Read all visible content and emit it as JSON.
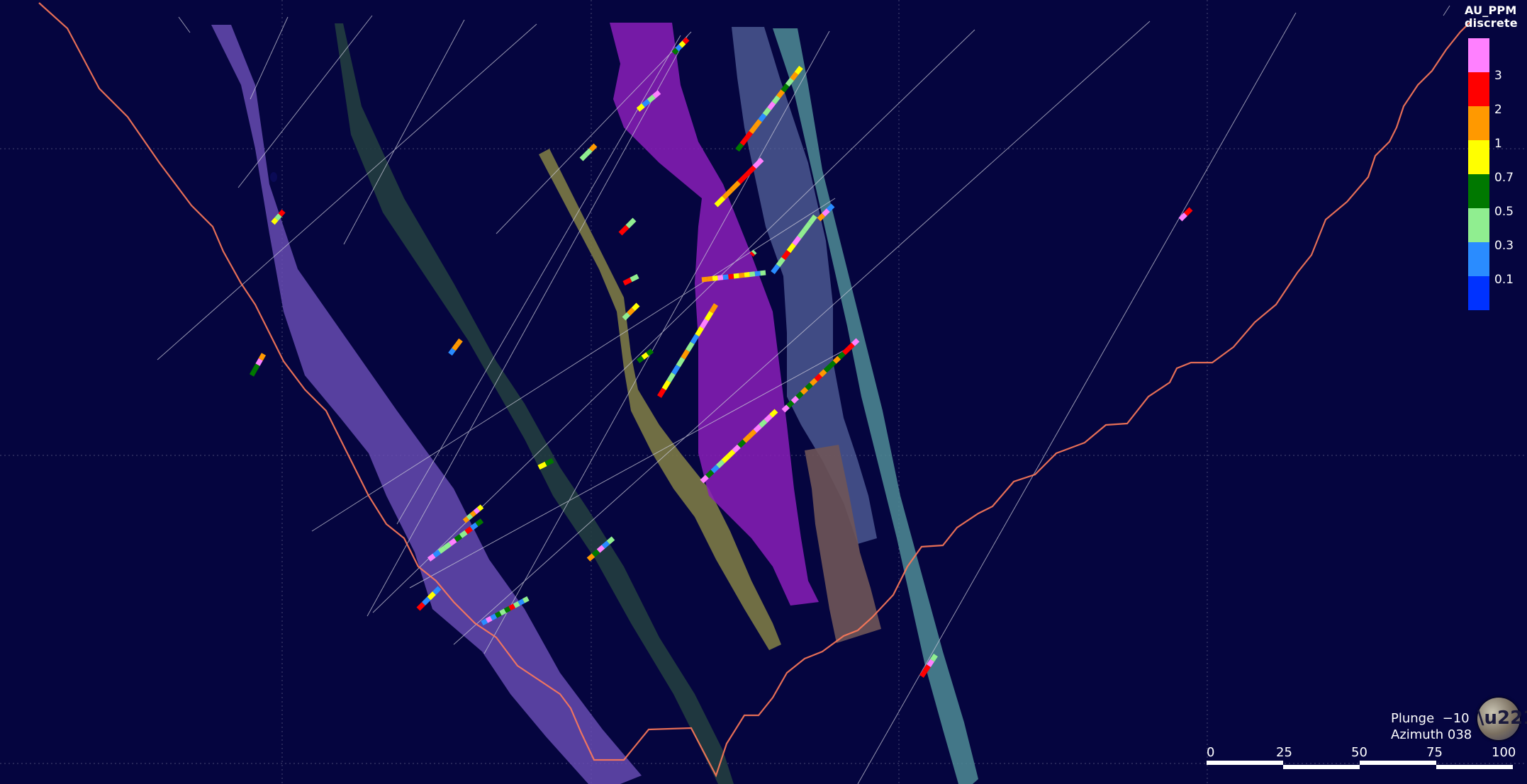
{
  "legend": {
    "title_line1": "AU_PPM",
    "title_line2": "discrete",
    "bins": [
      {
        "color": "#ff80ff",
        "label": ""
      },
      {
        "color": "#ff0000",
        "label": "3"
      },
      {
        "color": "#ff9900",
        "label": "2"
      },
      {
        "color": "#ffff00",
        "label": "1"
      },
      {
        "color": "#007800",
        "label": "0.7"
      },
      {
        "color": "#90ee90",
        "label": "0.5"
      },
      {
        "color": "#2a8cff",
        "label": "0.3"
      },
      {
        "color": "#0032ff",
        "label": "0.1"
      }
    ]
  },
  "view": {
    "plunge_label": "Plunge  −10",
    "azimuth_label": "Azimuth 038"
  },
  "compass_icon": "compass-globe-icon",
  "scale_bar": {
    "ticks": [
      "0",
      "25",
      "50",
      "75",
      "100"
    ]
  },
  "colors": {
    "background": "#05053f",
    "topography": "#ff7a59",
    "grid": "#8a8aa8",
    "drillhole": "#c8c8d8",
    "vein_lavender": "#6c4fb8",
    "vein_dark_teal": "#24413f",
    "vein_olive": "#7c7a45",
    "vein_magenta": "#8a1fb8",
    "vein_slate": "#5a6aa2",
    "vein_teal": "#4f8c95",
    "vein_brown": "#6f5558"
  }
}
